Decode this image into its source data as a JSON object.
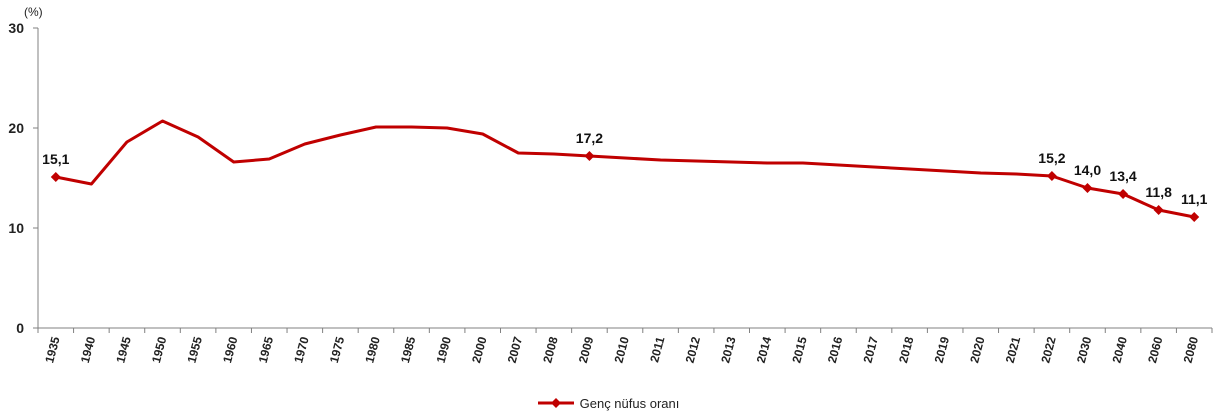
{
  "chart_data": {
    "type": "line",
    "y_unit": "(%)",
    "ylim": [
      0,
      30
    ],
    "yticks": [
      0,
      10,
      20,
      30
    ],
    "grid": false,
    "legend_position": "bottom",
    "categories": [
      "1935",
      "1940",
      "1945",
      "1950",
      "1955",
      "1960",
      "1965",
      "1970",
      "1975",
      "1980",
      "1985",
      "1990",
      "2000",
      "2007",
      "2008",
      "2009",
      "2010",
      "2011",
      "2012",
      "2013",
      "2014",
      "2015",
      "2016",
      "2017",
      "2018",
      "2019",
      "2020",
      "2021",
      "2022",
      "2030",
      "2040",
      "2060",
      "2080"
    ],
    "series": [
      {
        "name": "Genç nüfus oranı",
        "color": "#c00000",
        "values": [
          15.1,
          14.4,
          18.6,
          20.7,
          19.1,
          16.6,
          16.9,
          18.4,
          19.3,
          20.1,
          20.1,
          20.0,
          19.4,
          17.5,
          17.4,
          17.2,
          17.0,
          16.8,
          16.7,
          16.6,
          16.5,
          16.5,
          16.3,
          16.1,
          15.9,
          15.7,
          15.5,
          15.4,
          15.2,
          14.0,
          13.4,
          11.8,
          11.1
        ],
        "labels": [
          {
            "index": 0,
            "text": "15,1"
          },
          {
            "index": 15,
            "text": "17,2"
          },
          {
            "index": 28,
            "text": "15,2"
          },
          {
            "index": 29,
            "text": "14,0"
          },
          {
            "index": 30,
            "text": "13,4"
          },
          {
            "index": 31,
            "text": "11,8"
          },
          {
            "index": 32,
            "text": "11,1"
          }
        ],
        "markers_at": [
          0,
          15,
          28,
          29,
          30,
          31,
          32
        ]
      }
    ]
  }
}
